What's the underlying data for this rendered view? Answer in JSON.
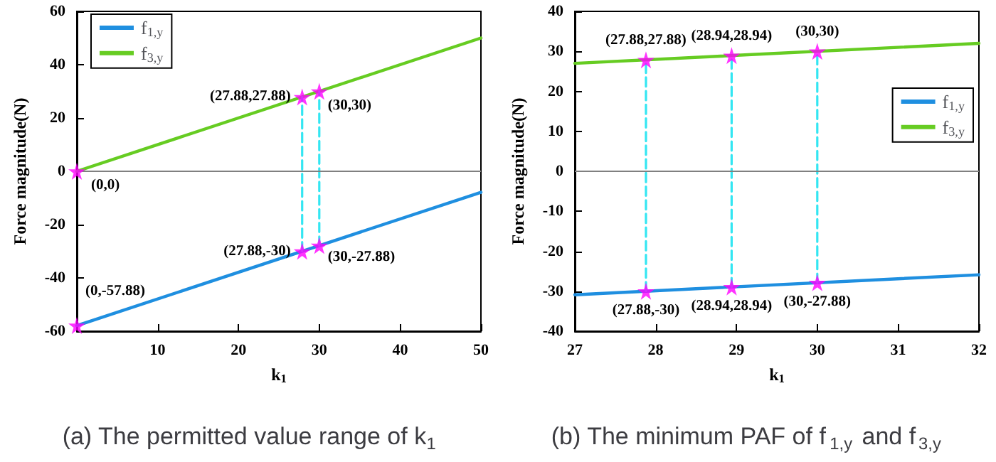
{
  "chart_data": [
    {
      "type": "line",
      "title": "(a) The permitted value range of k$_{1}$",
      "xlabel": "k$_{1}$",
      "ylabel": "Force magnitude(N)",
      "xlim": [
        0,
        50
      ],
      "xticks": [
        10,
        20,
        30,
        40,
        50
      ],
      "ylim": [
        -60,
        60
      ],
      "yticks": [
        -60,
        -40,
        -20,
        0,
        20,
        40,
        60
      ],
      "grid": false,
      "legend": "top left",
      "marker": "none",
      "line_style": "solid",
      "ref_lines": [
        {
          "axis": "y",
          "value": 0,
          "color": "#808080"
        }
      ],
      "annotations": [
        {
          "text": "(0,0)",
          "x": 0,
          "y": 0
        },
        {
          "text": "(27.88,27.88)",
          "x": 27.88,
          "y": 27.88
        },
        {
          "text": "(30,30)",
          "x": 30,
          "y": 30
        },
        {
          "text": "(0,-57.88)",
          "x": 0,
          "y": -57.88
        },
        {
          "text": "(27.88,-30)",
          "x": 27.88,
          "y": -30
        },
        {
          "text": "(30,-27.88)",
          "x": 30,
          "y": -27.88
        }
      ],
      "series": [
        {
          "name": "f$_{1,y}$",
          "color": "#1f8fe0",
          "x": [
            0,
            50
          ],
          "values": [
            -57.88,
            -7.88
          ]
        },
        {
          "name": "f$_{3,y}$",
          "color": "#66cc22",
          "x": [
            0,
            50
          ],
          "values": [
            0,
            50
          ]
        },
        {
          "type": "line",
          "color": "#33e6f2",
          "line_style": "dashed",
          "x": [
            27.88,
            27.88
          ],
          "values": [
            -30,
            27.88
          ]
        },
        {
          "type": "line",
          "color": "#33e6f2",
          "line_style": "dashed",
          "x": [
            30,
            30
          ],
          "values": [
            -27.88,
            30
          ]
        },
        {
          "type": "scatter",
          "marker": "star",
          "color": "#ff00ff",
          "x": [
            0,
            27.88,
            30,
            0,
            27.88,
            30
          ],
          "values": [
            0,
            27.88,
            30,
            -57.88,
            -30,
            -27.88
          ]
        }
      ]
    },
    {
      "type": "line",
      "title": "(b) The minimum PAF of f$_{1,y}$ and f$_{3,y}$",
      "xlabel": "k$_{1}$",
      "ylabel": "Force magnitude(N)",
      "xlim": [
        27,
        32
      ],
      "xticks": [
        27,
        28,
        29,
        30,
        31,
        32
      ],
      "ylim": [
        -40,
        40
      ],
      "yticks": [
        -40,
        -30,
        -20,
        -10,
        0,
        10,
        20,
        30,
        40
      ],
      "grid": false,
      "legend": "right",
      "marker": "none",
      "line_style": "solid",
      "ref_lines": [
        {
          "axis": "y",
          "value": 0,
          "color": "#808080"
        }
      ],
      "annotations": [
        {
          "text": "(27.88,27.88)",
          "x": 27.88,
          "y": 27.88
        },
        {
          "text": "(28.94,28.94)",
          "x": 28.94,
          "y": 28.94
        },
        {
          "text": "(30,30)",
          "x": 30,
          "y": 30
        },
        {
          "text": "(27.88,-30)",
          "x": 27.88,
          "y": -30
        },
        {
          "text": "(28.94,28.94)",
          "x": 28.94,
          "y": -28.94
        },
        {
          "text": "(30,-27.88)",
          "x": 30,
          "y": -27.88
        }
      ],
      "series": [
        {
          "name": "f$_{1,y}$",
          "color": "#1f8fe0",
          "x": [
            27,
            32
          ],
          "values": [
            -30.88,
            -25.88
          ]
        },
        {
          "name": "f$_{3,y}$",
          "color": "#66cc22",
          "x": [
            27,
            32
          ],
          "values": [
            27,
            32
          ]
        },
        {
          "type": "line",
          "color": "#33e6f2",
          "line_style": "dashed",
          "x": [
            27.88,
            27.88
          ],
          "values": [
            -30,
            27.88
          ]
        },
        {
          "type": "line",
          "color": "#33e6f2",
          "line_style": "dashed",
          "x": [
            28.94,
            28.94
          ],
          "values": [
            -28.94,
            28.94
          ]
        },
        {
          "type": "line",
          "color": "#33e6f2",
          "line_style": "dashed",
          "x": [
            30,
            30
          ],
          "values": [
            -27.88,
            30
          ]
        },
        {
          "type": "scatter",
          "marker": "star",
          "color": "#ff00ff",
          "x": [
            27.88,
            28.94,
            30,
            27.88,
            28.94,
            30
          ],
          "values": [
            27.88,
            28.94,
            30,
            -30,
            -28.94,
            -27.88
          ]
        }
      ]
    }
  ]
}
